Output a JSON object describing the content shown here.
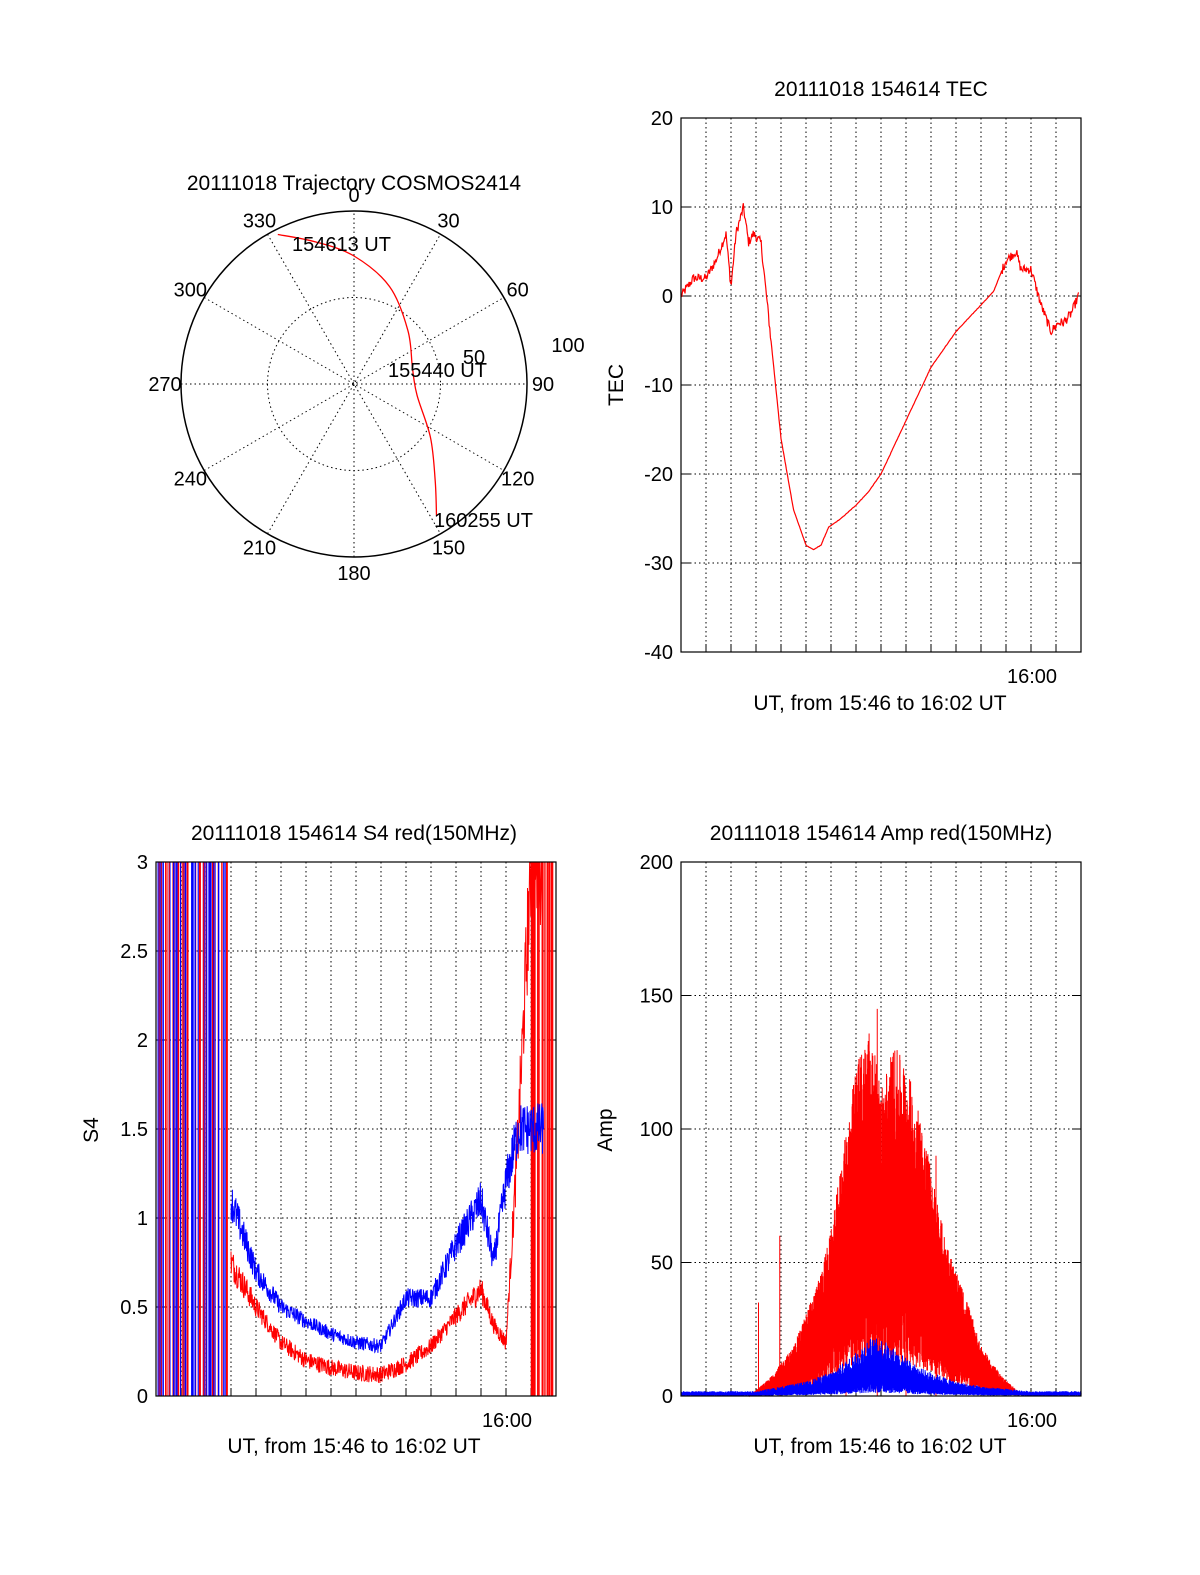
{
  "chart_data": [
    {
      "type": "polar",
      "title": "20111018 Trajectory COSMOS2414",
      "angle_labels": [
        "0",
        "30",
        "60",
        "90",
        "120",
        "150",
        "180",
        "210",
        "240",
        "270",
        "300",
        "330"
      ],
      "radius_labels": [
        "50",
        "100"
      ],
      "trajectory": {
        "color": "#ff0000",
        "points": [
          {
            "az": 333,
            "zenith": 97
          },
          {
            "az": 345,
            "zenith": 85
          },
          {
            "az": 0,
            "zenith": 74
          },
          {
            "az": 20,
            "zenith": 60
          },
          {
            "az": 45,
            "zenith": 44
          },
          {
            "az": 75,
            "zenith": 35
          },
          {
            "az": 100,
            "zenith": 37
          },
          {
            "az": 125,
            "zenith": 54
          },
          {
            "az": 140,
            "zenith": 73
          },
          {
            "az": 148,
            "zenith": 90
          }
        ]
      },
      "annotations": [
        "154613 UT",
        "155440 UT",
        "160255 UT"
      ]
    },
    {
      "type": "line",
      "title": "20111018 154614 TEC",
      "ylabel": "TEC",
      "xlabel": "UT, from 15:46 to 16:02 UT",
      "xtick_labels": [
        "16:00"
      ],
      "ylim": [
        -40,
        20
      ],
      "yticks": [
        "-40",
        "-30",
        "-20",
        "-10",
        "0",
        "10",
        "20"
      ],
      "series": [
        {
          "color": "#ff0000",
          "noise": 0.35,
          "x": [
            0,
            0.5,
            1,
            1.4,
            1.8,
            2.0,
            2.2,
            2.5,
            2.7,
            2.9,
            3.2,
            3.6,
            4.0,
            4.5,
            5.0,
            5.3,
            5.6,
            5.9,
            6.4,
            7.0,
            7.5,
            8.0,
            8.5,
            9.0,
            9.5,
            10.0,
            10.5,
            11.0,
            11.5,
            12.0,
            12.5,
            13.0,
            13.4,
            13.6,
            14.0,
            14.4,
            14.8,
            15.1,
            15.3,
            15.6,
            15.9
          ],
          "y": [
            0,
            2,
            2,
            4,
            7,
            1,
            7,
            10,
            6,
            7,
            6,
            -5,
            -16,
            -24,
            -28,
            -28.5,
            -28,
            -26,
            -25,
            -23.5,
            -22,
            -20,
            -17,
            -14,
            -11,
            -8,
            -6,
            -4,
            -2.5,
            -1,
            0.5,
            4,
            5,
            3,
            3,
            -1,
            -4,
            -3,
            -3,
            -2,
            0
          ]
        }
      ]
    },
    {
      "type": "line",
      "title": "20111018 154614 S4 red(150MHz)",
      "ylabel": "S4",
      "xlabel": "UT, from 15:46 to 16:02 UT",
      "xtick_labels": [
        "16:00"
      ],
      "ylim": [
        0,
        3
      ],
      "yticks": [
        "0",
        "0.5",
        "1",
        "1.5",
        "2",
        "2.5",
        "3"
      ],
      "series": [
        {
          "color": "#ff0000",
          "noise": 0.12,
          "x": [
            3.0,
            4.0,
            5.0,
            6.0,
            7.0,
            8.0,
            9.0,
            10.0,
            11.0,
            12.0,
            13.0,
            13.5,
            14.0,
            14.5,
            15.0,
            15.5
          ],
          "y": [
            0.75,
            0.5,
            0.3,
            0.2,
            0.16,
            0.13,
            0.12,
            0.18,
            0.28,
            0.45,
            0.6,
            0.4,
            0.3,
            1.5,
            3.0,
            3.0
          ]
        },
        {
          "color": "#0000ff",
          "noise": 0.1,
          "x": [
            3.0,
            4.0,
            5.0,
            6.0,
            7.0,
            8.0,
            9.0,
            10.0,
            11.0,
            12.0,
            13.0,
            13.5,
            14.0,
            14.5,
            15.0,
            15.5
          ],
          "y": [
            1.1,
            0.7,
            0.5,
            0.42,
            0.35,
            0.3,
            0.28,
            0.55,
            0.55,
            0.85,
            1.1,
            0.75,
            1.2,
            1.5,
            1.5,
            1.5
          ]
        }
      ]
    },
    {
      "type": "line",
      "title": "20111018 154614 Amp red(150MHz)",
      "ylabel": "Amp",
      "xlabel": "UT, from 15:46 to 16:02 UT",
      "xtick_labels": [
        "16:00"
      ],
      "ylim": [
        0,
        200
      ],
      "yticks": [
        "0",
        "50",
        "100",
        "150",
        "200"
      ],
      "series": [
        {
          "color": "#ff0000",
          "x": [
            2.7,
            3.5,
            4.0,
            4.5,
            5.0,
            5.5,
            6.0,
            6.5,
            7.0,
            7.5,
            8.0,
            8.5,
            9.0,
            9.5,
            10.0,
            10.5,
            11.0,
            11.5,
            12.0,
            12.8,
            13.5
          ],
          "y": [
            0,
            4,
            8,
            12,
            20,
            28,
            40,
            60,
            80,
            90,
            75,
            85,
            80,
            70,
            55,
            40,
            30,
            22,
            12,
            5,
            1
          ]
        },
        {
          "color": "#0000ff",
          "x": [
            0,
            2,
            3,
            4,
            5,
            6,
            6.5,
            7.0,
            7.5,
            8.0,
            8.5,
            9.0,
            9.5,
            10.0,
            11.0,
            12.0,
            13.0,
            14.0,
            15.0,
            16.0
          ],
          "y": [
            1,
            1,
            1,
            2,
            3,
            5,
            7,
            9,
            12,
            12,
            10,
            8,
            6,
            5,
            3,
            2,
            1.5,
            1,
            1,
            1
          ]
        }
      ]
    }
  ]
}
